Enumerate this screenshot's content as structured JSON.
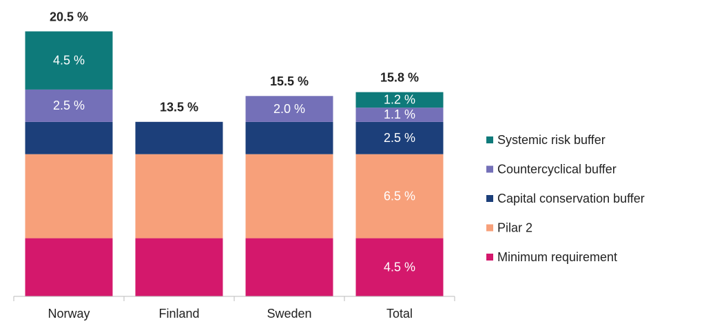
{
  "chart_data": {
    "type": "stacked_bar",
    "categories": [
      "Norway",
      "Finland",
      "Sweden",
      "Total"
    ],
    "ylim": [
      0,
      22.5
    ],
    "total_labels": [
      "20.5 %",
      "13.5 %",
      "15.5 %",
      "15.8 %"
    ],
    "legend": "right",
    "series": [
      {
        "name": "Minimum requirement",
        "color": "#d4186c",
        "values": [
          4.5,
          4.5,
          4.5,
          4.5
        ],
        "value_labels": [
          null,
          null,
          null,
          "4.5 %"
        ]
      },
      {
        "name": "Pilar 2",
        "color": "#f7a07a",
        "values": [
          6.5,
          6.5,
          6.5,
          6.5
        ],
        "value_labels": [
          null,
          null,
          null,
          "6.5 %"
        ]
      },
      {
        "name": "Capital conservation buffer",
        "color": "#1c3f7a",
        "values": [
          2.5,
          2.5,
          2.5,
          2.5
        ],
        "value_labels": [
          null,
          null,
          null,
          "2.5 %"
        ]
      },
      {
        "name": "Countercyclical buffer",
        "color": "#7470b8",
        "values": [
          2.5,
          0,
          2.0,
          1.1
        ],
        "value_labels": [
          "2.5 %",
          null,
          "2.0 %",
          "1.1 %"
        ]
      },
      {
        "name": "Systemic risk buffer",
        "color": "#0e7a7a",
        "values": [
          4.5,
          0,
          0,
          1.2
        ],
        "value_labels": [
          "4.5 %",
          null,
          null,
          "1.2 %"
        ]
      }
    ]
  }
}
